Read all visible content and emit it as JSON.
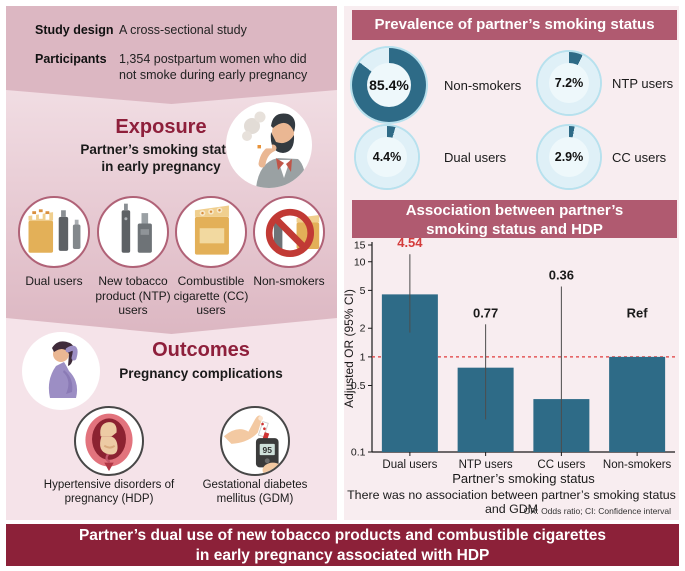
{
  "colors": {
    "pink_dark": "#dcb7c2",
    "pink_light": "#f5e3e9",
    "right_bg": "#f8edf0",
    "banner_rose": "#b05a70",
    "banner_dark_red": "#8c2139",
    "heading_maroon": "#8e1f3b",
    "teal": "#2e6b87",
    "donut_track": "#dff0f7",
    "donut_border": "#b7e1ee",
    "donut_hole": "#eef8fb",
    "highlight_red": "#d43c3c",
    "ref_line_red": "#e03c3c"
  },
  "left_panel": {
    "study_design_label": "Study design",
    "study_design_value": "A cross-sectional study",
    "participants_label": "Participants",
    "participants_value": "1,354 postpartum women who did not smoke during early pregnancy",
    "exposure": {
      "heading": "Exposure",
      "subheading_line1": "Partner’s smoking status",
      "subheading_line2": "in early pregnancy",
      "groups": [
        "Dual users",
        "New tobacco product (NTP) users",
        "Combustible cigarette (CC) users",
        "Non-smokers"
      ]
    },
    "outcomes": {
      "heading": "Outcomes",
      "subheading": "Pregnancy complications",
      "items": [
        "Hypertensive disorders of pregnancy (HDP)",
        "Gestational diabetes mellitus (GDM)"
      ],
      "glucose_meter_reading": "95"
    }
  },
  "right_panel": {
    "footnote": "There was no association between partner’s smoking status and GDM",
    "abbreviations": "OR: Odds ratio; CI: Confidence interval",
    "association_title_line1": "Association between partner’s",
    "association_title_line2": "smoking status and HDP"
  },
  "bottom_banner": {
    "line1": "Partner’s dual use of new tobacco products and combustible cigarettes",
    "line2": "in early pregnancy associated with HDP"
  },
  "chart_data": [
    {
      "type": "pie",
      "title": "Prevalence of partner’s smoking status",
      "display": "four separate single-value donut charts",
      "slices": [
        {
          "label": "Non-smokers",
          "value": 85.4,
          "pct": "85.4%"
        },
        {
          "label": "NTP users",
          "value": 7.2,
          "pct": "7.2%"
        },
        {
          "label": "Dual users",
          "value": 4.4,
          "pct": "4.4%"
        },
        {
          "label": "CC users",
          "value": 2.9,
          "pct": "2.9%"
        }
      ]
    },
    {
      "type": "bar",
      "title": "Association between partner’s smoking status and HDP",
      "categories": [
        "Dual users",
        "NTP users",
        "CC users",
        "Non-smokers"
      ],
      "values": [
        4.54,
        0.77,
        0.36,
        1.0
      ],
      "value_labels": [
        "4.54",
        "0.77",
        "0.36",
        "Ref"
      ],
      "value_label_colors": [
        "#d43c3c",
        "#1a1a1a",
        "#1a1a1a",
        "#1a1a1a"
      ],
      "ci": [
        [
          1.8,
          12
        ],
        [
          0.22,
          2.2
        ],
        [
          0.05,
          5.5
        ],
        null
      ],
      "ylabel": "Adjusted OR (95% CI)",
      "xlabel": "Partner’s smoking status",
      "yscale": "log",
      "ylim": [
        0.1,
        15
      ],
      "yticks": [
        15,
        10,
        5,
        2,
        1,
        0.5,
        0.1
      ],
      "ref_line": 1,
      "bar_color": "#2e6b87",
      "grid": false,
      "legend": false
    }
  ]
}
